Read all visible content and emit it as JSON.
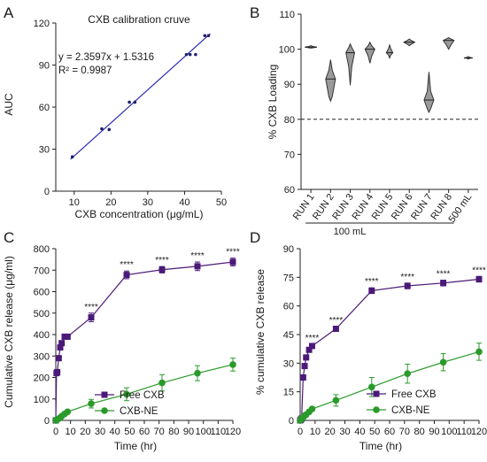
{
  "chart_data": [
    {
      "panel": "A",
      "type": "scatter",
      "title": "CXB calibration cruve",
      "xlabel": "CXB concentration (μg/mL)",
      "ylabel": "AUC",
      "xlim": [
        5,
        50
      ],
      "ylim": [
        0,
        120
      ],
      "xticks": [
        "10",
        "20",
        "30",
        "40",
        "50"
      ],
      "yticks": [
        "0",
        "30",
        "60",
        "90",
        "120"
      ],
      "x": [
        9.5,
        17.5,
        19.5,
        25,
        26.5,
        40.5,
        41.5,
        43,
        45.5,
        46.5
      ],
      "y": [
        24.5,
        44.5,
        44,
        63.5,
        63.5,
        97.5,
        97.5,
        97.5,
        111,
        111
      ],
      "equation": "y = 2.3597x + 1.5316",
      "r2": "R² = 0.9987",
      "fit": {
        "slope": 2.3597,
        "intercept": 1.5316,
        "x_range": [
          9,
          47
        ]
      },
      "grid": false,
      "point_color": "#1f1f6e",
      "line_color": "#2b2bb0"
    },
    {
      "panel": "B",
      "type": "violin",
      "ylabel": "% CXB Loading",
      "ylim": [
        60,
        110
      ],
      "yticks": [
        "60",
        "70",
        "80",
        "90",
        "100",
        "110"
      ],
      "categories": [
        "RUN 1",
        "RUN 2",
        "RUN 3",
        "RUN 4",
        "RUN 5",
        "RUN 6",
        "RUN 7",
        "RUN 8",
        "500 mL"
      ],
      "group_label": "100 mL",
      "reference_line": 80,
      "series": [
        {
          "min": 100.3,
          "q1": 100.4,
          "median": 100.6,
          "q3": 100.8,
          "max": 101.0,
          "width": 0.55
        },
        {
          "min": 85.2,
          "q1": 86.5,
          "median": 91.5,
          "q3": 94.0,
          "max": 97.0,
          "width": 0.45
        },
        {
          "min": 89.7,
          "q1": 95.0,
          "median": 99.0,
          "q3": 100.5,
          "max": 101.5,
          "width": 0.4
        },
        {
          "min": 96.0,
          "q1": 98.0,
          "median": 100.0,
          "q3": 101.0,
          "max": 102.0,
          "width": 0.45
        },
        {
          "min": 97.5,
          "q1": 98.3,
          "median": 99.0,
          "q3": 100.2,
          "max": 101.2,
          "width": 0.3
        },
        {
          "min": 101.0,
          "q1": 101.4,
          "median": 102.0,
          "q3": 102.5,
          "max": 102.9,
          "width": 0.5
        },
        {
          "min": 82.0,
          "q1": 83.0,
          "median": 85.5,
          "q3": 88.0,
          "max": 93.5,
          "width": 0.45
        },
        {
          "min": 100.0,
          "q1": 101.0,
          "median": 102.5,
          "q3": 103.0,
          "max": 103.3,
          "width": 0.5
        },
        {
          "min": 97.2,
          "q1": 97.4,
          "median": 97.5,
          "q3": 97.7,
          "max": 97.9,
          "width": 0.4
        }
      ],
      "violin_color": "#9a9a9a"
    },
    {
      "panel": "C",
      "type": "line",
      "xlabel": "Time (hr)",
      "ylabel": "Cumulative CXB release (μg/ml)",
      "xlim": [
        0,
        120
      ],
      "ylim": [
        0,
        800
      ],
      "xticks": [
        "0",
        "10",
        "20",
        "30",
        "40",
        "50",
        "60",
        "70",
        "80",
        "90",
        "100",
        "110",
        "120"
      ],
      "yticks": [
        "0",
        "100",
        "200",
        "300",
        "400",
        "500",
        "600",
        "700",
        "800"
      ],
      "x": [
        0,
        0.5,
        1,
        2,
        3,
        4,
        6,
        8,
        24,
        48,
        72,
        96,
        120
      ],
      "series": [
        {
          "name": "Free CXB",
          "color": "#4b1a78",
          "marker": "square",
          "values": [
            0,
            220,
            225,
            290,
            340,
            360,
            390,
            390,
            480,
            678,
            702,
            718,
            738
          ],
          "errors": [
            0,
            8,
            8,
            10,
            10,
            10,
            10,
            10,
            20,
            18,
            15,
            20,
            18
          ]
        },
        {
          "name": "CXB-NE",
          "color": "#2a9a2a",
          "marker": "circle",
          "values": [
            0,
            3,
            5,
            8,
            12,
            20,
            30,
            40,
            78,
            122,
            175,
            220,
            260
          ],
          "errors": [
            0,
            2,
            2,
            3,
            3,
            4,
            5,
            6,
            20,
            30,
            38,
            35,
            30
          ]
        }
      ],
      "significance": [
        {
          "x": 24,
          "label": "****"
        },
        {
          "x": 48,
          "label": "****"
        },
        {
          "x": 72,
          "label": "****"
        },
        {
          "x": 96,
          "label": "****"
        },
        {
          "x": 120,
          "label": "****"
        }
      ],
      "legend": "right",
      "grid": false
    },
    {
      "panel": "D",
      "type": "line",
      "xlabel": "Time (hr)",
      "ylabel": "% cumulative CXB release",
      "xlim": [
        0,
        120
      ],
      "ylim": [
        0,
        90
      ],
      "xticks": [
        "0",
        "10",
        "20",
        "30",
        "40",
        "50",
        "60",
        "70",
        "80",
        "90",
        "100",
        "110",
        "120"
      ],
      "yticks": [
        "0",
        "15",
        "30",
        "45",
        "60",
        "75",
        "90"
      ],
      "x": [
        0,
        0.5,
        1,
        2,
        3,
        4,
        6,
        8,
        24,
        48,
        72,
        96,
        120
      ],
      "series": [
        {
          "name": "Free CXB",
          "color": "#4b1a78",
          "marker": "square",
          "values": [
            0,
            0.5,
            1,
            22.5,
            28.5,
            33,
            37,
            39,
            48,
            68,
            70.5,
            72,
            74
          ],
          "errors": [
            0,
            0.3,
            0.3,
            1,
            1,
            1,
            1,
            1,
            1.2,
            1.5,
            1.5,
            1.5,
            1.5
          ]
        },
        {
          "name": "CXB-NE",
          "color": "#2a9a2a",
          "marker": "circle",
          "values": [
            0,
            0.5,
            1,
            1.5,
            2.5,
            3,
            4.5,
            6,
            10.5,
            17.5,
            24.5,
            30.5,
            36
          ],
          "errors": [
            0,
            0.2,
            0.3,
            0.3,
            0.5,
            0.5,
            1,
            1,
            3,
            5,
            5,
            4.5,
            4.5
          ]
        }
      ],
      "significance": [
        {
          "x": 8,
          "label": "****"
        },
        {
          "x": 24,
          "label": "****"
        },
        {
          "x": 48,
          "label": "****"
        },
        {
          "x": 72,
          "label": "****"
        },
        {
          "x": 96,
          "label": "****"
        },
        {
          "x": 120,
          "label": "****"
        }
      ],
      "legend": "right",
      "grid": false
    }
  ],
  "panel_letters": [
    "A",
    "B",
    "C",
    "D"
  ]
}
